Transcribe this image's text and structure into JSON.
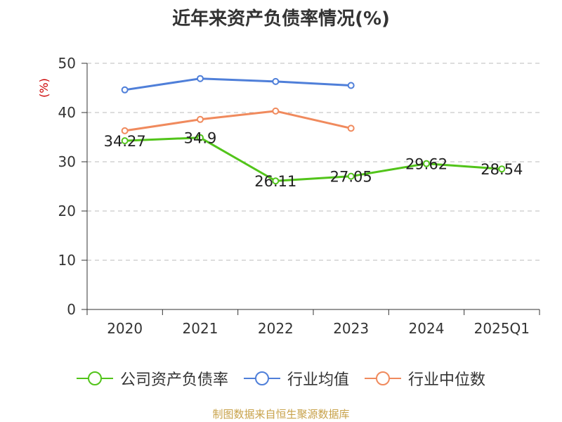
{
  "title": "近年来资产负债率情况(%)",
  "source": "制图数据来自恒生聚源数据库",
  "colors": {
    "company": "#52c41a",
    "industry_avg": "#4f7fd9",
    "industry_median": "#f08a5d",
    "grid": "#bbbbbb",
    "axis": "#333333",
    "ylabel": "#cc0000"
  },
  "chart_data": {
    "type": "line",
    "title": "近年来资产负债率情况(%)",
    "ylabel": "(%)",
    "xlabel": "",
    "categories": [
      "2020",
      "2021",
      "2022",
      "2023",
      "2024",
      "2025Q1"
    ],
    "ylim": [
      0,
      50
    ],
    "yticks": [
      0,
      10,
      20,
      30,
      40,
      50
    ],
    "grid": true,
    "legend_position": "bottom",
    "series": [
      {
        "name": "公司资产负债率",
        "color": "#52c41a",
        "values": [
          34.27,
          34.9,
          26.11,
          27.05,
          29.62,
          28.54
        ],
        "labels": [
          "34.27",
          "34.9",
          "26.11",
          "27.05",
          "29.62",
          "28.54"
        ]
      },
      {
        "name": "行业均值",
        "color": "#4f7fd9",
        "values": [
          44.6,
          46.9,
          46.3,
          45.5,
          null,
          null
        ]
      },
      {
        "name": "行业中位数",
        "color": "#f08a5d",
        "values": [
          36.3,
          38.6,
          40.3,
          36.8,
          null,
          null
        ]
      }
    ]
  }
}
